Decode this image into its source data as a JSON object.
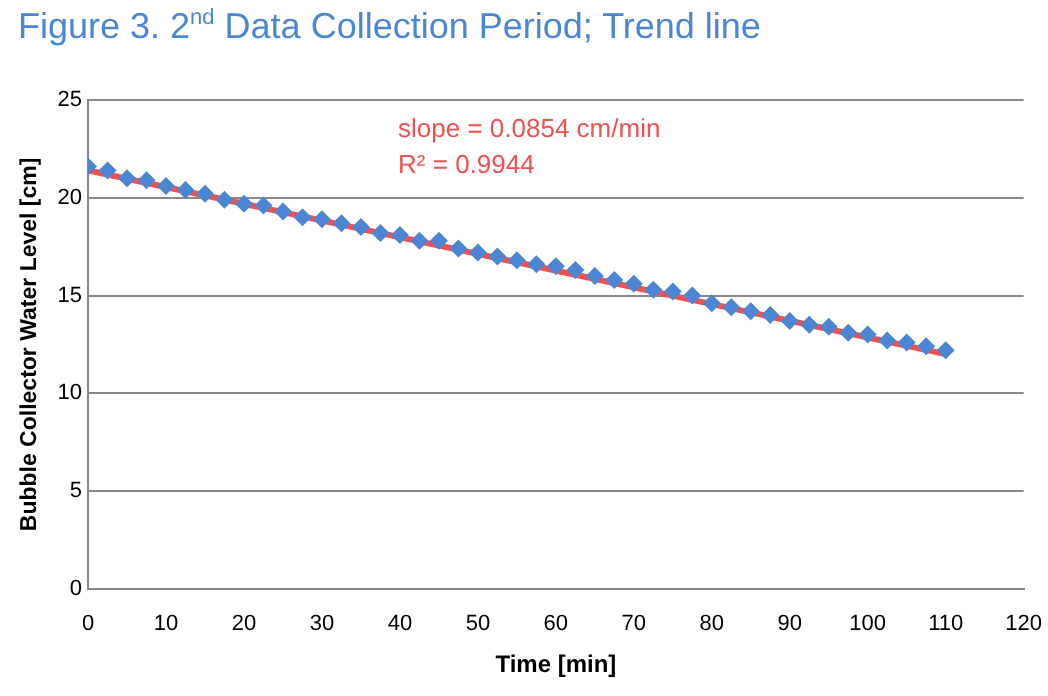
{
  "chart_data": {
    "type": "scatter",
    "title": "Figure 3. 2$^{nd}$ Data Collection Period; Trend line",
    "xlabel": "Time [min]",
    "ylabel": "Bubble Collector Water Level [cm]",
    "annotations": [
      "slope = 0.0854 cm/min",
      "R² = 0.9944"
    ],
    "xlim": [
      0,
      120
    ],
    "xticks": [
      0,
      10,
      20,
      30,
      40,
      50,
      60,
      70,
      80,
      90,
      100,
      110,
      120
    ],
    "ylim": [
      0,
      25
    ],
    "yticks": [
      0,
      5,
      10,
      15,
      20,
      25
    ],
    "grid": "y",
    "legend": false,
    "series": [
      {
        "marker": "diamond",
        "color": "#4a86d4",
        "x": [
          0,
          2.5,
          5,
          7.5,
          10,
          12.5,
          15,
          17.5,
          20,
          22.5,
          25,
          27.5,
          30,
          32.5,
          35,
          37.5,
          40,
          42.5,
          45,
          47.5,
          50,
          52.5,
          55,
          57.5,
          60,
          62.5,
          65,
          67.5,
          70,
          72.5,
          75,
          77.5,
          80,
          82.5,
          85,
          87.5,
          90,
          92.5,
          95,
          97.5,
          100,
          102.5,
          105,
          107.5,
          110
        ],
        "values": [
          21.6,
          21.4,
          21.0,
          20.9,
          20.6,
          20.4,
          20.2,
          19.9,
          19.7,
          19.6,
          19.3,
          19.0,
          18.9,
          18.7,
          18.5,
          18.2,
          18.1,
          17.8,
          17.8,
          17.4,
          17.2,
          17.0,
          16.8,
          16.6,
          16.5,
          16.3,
          16.0,
          15.8,
          15.6,
          15.3,
          15.2,
          15.0,
          14.6,
          14.4,
          14.2,
          14.0,
          13.7,
          13.5,
          13.4,
          13.1,
          13.0,
          12.7,
          12.6,
          12.4,
          12.2
        ]
      },
      {
        "type": "line",
        "marker": "none",
        "color": "#f05050",
        "x": [
          0,
          110
        ],
        "values": [
          21.4,
          12.0
        ]
      }
    ]
  }
}
